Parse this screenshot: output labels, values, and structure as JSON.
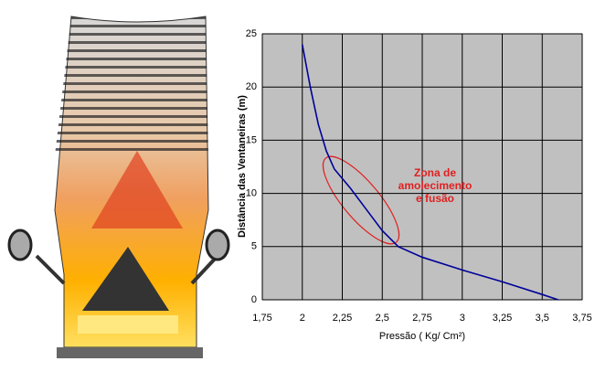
{
  "chart_data": {
    "type": "line",
    "x_label": "Pressão ( Kg/ Cm²)",
    "y_label": "Distância das Ventaneiras (m)",
    "annotation": [
      "Zona de",
      "amolecimento",
      "e fusão"
    ],
    "x": [
      2,
      2.05,
      2.1,
      2.15,
      2.2,
      2.3,
      2.4,
      2.5,
      2.6,
      2.75,
      3,
      3.25,
      3.5,
      3.6
    ],
    "series": [
      {
        "color": "#000099",
        "values": [
          24,
          20,
          16.5,
          14,
          12.3,
          10.5,
          8.5,
          6.5,
          5,
          4,
          2.8,
          1.7,
          0.5,
          0
        ]
      }
    ],
    "xlim": [
      1.75,
      3.75
    ],
    "xticks": [
      {
        "value": 1.75,
        "label": "1,75"
      },
      2,
      {
        "value": 2.25,
        "label": "2,25"
      },
      {
        "value": 2.5,
        "label": "2,5"
      },
      {
        "value": 2.75,
        "label": "2,75"
      },
      3,
      {
        "value": 3.25,
        "label": "3,25"
      },
      {
        "value": 3.5,
        "label": "3,5"
      },
      {
        "value": 3.75,
        "label": "3,75"
      }
    ],
    "ylim": [
      0,
      25
    ],
    "yticks": [
      0,
      5,
      10,
      15,
      20,
      25
    ],
    "grid": true
  }
}
